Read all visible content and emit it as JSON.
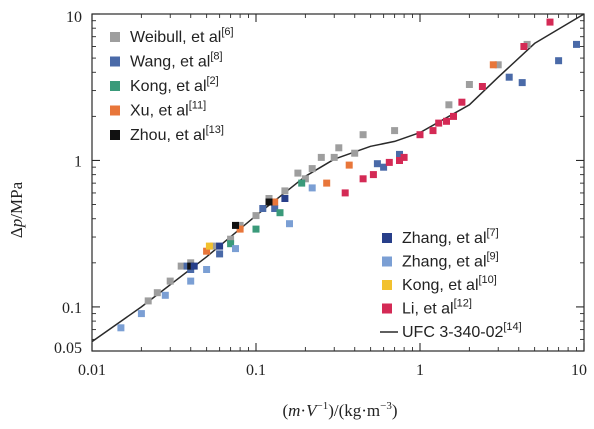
{
  "chart_data": {
    "type": "scatter",
    "x_scale": "log",
    "y_scale": "log",
    "xlim": [
      0.01,
      10
    ],
    "ylim": [
      0.05,
      10
    ],
    "xticks": [
      {
        "value": 0.01,
        "label": "0.01"
      },
      {
        "value": 0.1,
        "label": "0.1"
      },
      {
        "value": 1,
        "label": "1"
      },
      {
        "value": 10,
        "label": "10"
      }
    ],
    "yticks": [
      {
        "value": 0.05,
        "label": "0.05"
      },
      {
        "value": 0.1,
        "label": "0.1"
      },
      {
        "value": 1,
        "label": "1"
      },
      {
        "value": 10,
        "label": "10"
      }
    ],
    "xlabel": {
      "pre": "(",
      "m": "m",
      "dot": "·",
      "v": "V",
      "sup": "−1",
      "post": ")/(kg·m",
      "post_sup": "−3",
      "end": ")"
    },
    "ylabel": {
      "delta": "Δ",
      "p": "p",
      "unit": "/MPa"
    },
    "grid": false,
    "legend_upper": "top-left",
    "legend_lower": "bottom-right",
    "series": [
      {
        "name": "Weibull, et al",
        "ref": "[6]",
        "color": "#9e9e9e",
        "legend_group": "upper",
        "points": [
          [
            0.022,
            0.11
          ],
          [
            0.025,
            0.125
          ],
          [
            0.03,
            0.15
          ],
          [
            0.035,
            0.19
          ],
          [
            0.04,
            0.2
          ],
          [
            0.055,
            0.26
          ],
          [
            0.07,
            0.29
          ],
          [
            0.08,
            0.36
          ],
          [
            0.1,
            0.42
          ],
          [
            0.12,
            0.55
          ],
          [
            0.15,
            0.62
          ],
          [
            0.18,
            0.82
          ],
          [
            0.2,
            0.75
          ],
          [
            0.22,
            0.88
          ],
          [
            0.25,
            1.05
          ],
          [
            0.3,
            1.05
          ],
          [
            0.32,
            1.22
          ],
          [
            0.4,
            1.12
          ],
          [
            0.45,
            1.5
          ],
          [
            0.7,
            1.6
          ],
          [
            1.5,
            2.4
          ],
          [
            2.0,
            3.3
          ],
          [
            3.0,
            4.5
          ],
          [
            4.5,
            6.2
          ]
        ]
      },
      {
        "name": "Wang, et al",
        "ref": "[8]",
        "color": "#4a6aa8",
        "legend_group": "upper",
        "points": [
          [
            0.038,
            0.19
          ],
          [
            0.04,
            0.18
          ],
          [
            0.06,
            0.23
          ],
          [
            0.11,
            0.47
          ],
          [
            0.13,
            0.47
          ],
          [
            0.55,
            0.95
          ],
          [
            0.6,
            0.9
          ],
          [
            0.75,
            1.1
          ],
          [
            3.5,
            3.7
          ],
          [
            4.2,
            3.4
          ],
          [
            7.0,
            4.8
          ],
          [
            9.0,
            6.2
          ]
        ]
      },
      {
        "name": "Kong, et al",
        "ref": "[2]",
        "color": "#3a9a7a",
        "legend_group": "upper",
        "points": [
          [
            0.07,
            0.27
          ],
          [
            0.1,
            0.34
          ],
          [
            0.14,
            0.44
          ],
          [
            0.19,
            0.7
          ]
        ]
      },
      {
        "name": "Xu, et al",
        "ref": "[11]",
        "color": "#e8763a",
        "legend_group": "upper",
        "points": [
          [
            0.05,
            0.24
          ],
          [
            0.08,
            0.34
          ],
          [
            0.13,
            0.52
          ],
          [
            0.27,
            0.7
          ],
          [
            0.37,
            0.93
          ],
          [
            2.8,
            4.5
          ]
        ]
      },
      {
        "name": "Zhou, et al",
        "ref": "[13]",
        "color": "#111111",
        "legend_group": "upper",
        "points": [
          [
            0.04,
            0.19
          ],
          [
            0.075,
            0.36
          ],
          [
            0.12,
            0.52
          ]
        ]
      },
      {
        "name": "Zhang, et al",
        "ref": "[7]",
        "color": "#283f8a",
        "legend_group": "lower",
        "points": [
          [
            0.042,
            0.19
          ],
          [
            0.06,
            0.26
          ],
          [
            0.15,
            0.55
          ]
        ]
      },
      {
        "name": "Zhang, et al",
        "ref": "[9]",
        "color": "#7b9fd4",
        "legend_group": "lower",
        "points": [
          [
            0.015,
            0.072
          ],
          [
            0.02,
            0.09
          ],
          [
            0.028,
            0.12
          ],
          [
            0.04,
            0.15
          ],
          [
            0.05,
            0.18
          ],
          [
            0.075,
            0.25
          ],
          [
            0.16,
            0.37
          ],
          [
            0.22,
            0.65
          ]
        ]
      },
      {
        "name": "Kong, et al",
        "ref": "[10]",
        "color": "#f2c12e",
        "legend_group": "lower",
        "points": [
          [
            0.052,
            0.26
          ]
        ]
      },
      {
        "name": "Li, et al",
        "ref": "[12]",
        "color": "#d42a55",
        "legend_group": "lower",
        "points": [
          [
            0.35,
            0.6
          ],
          [
            0.45,
            0.75
          ],
          [
            0.52,
            0.8
          ],
          [
            0.65,
            0.97
          ],
          [
            0.75,
            1.0
          ],
          [
            0.8,
            1.05
          ],
          [
            1.0,
            1.5
          ],
          [
            1.2,
            1.6
          ],
          [
            1.3,
            1.8
          ],
          [
            1.45,
            1.85
          ],
          [
            1.6,
            2.0
          ],
          [
            1.8,
            2.5
          ],
          [
            2.4,
            3.2
          ],
          [
            4.3,
            6.0
          ],
          [
            6.2,
            8.8
          ]
        ]
      }
    ],
    "reference_line": {
      "name": "UFC 3-340-02",
      "ref": "[14]",
      "color": "#2a2a2a",
      "points": [
        [
          0.01,
          0.058
        ],
        [
          0.02,
          0.1
        ],
        [
          0.05,
          0.22
        ],
        [
          0.1,
          0.42
        ],
        [
          0.2,
          0.78
        ],
        [
          0.3,
          1.02
        ],
        [
          0.5,
          1.25
        ],
        [
          0.7,
          1.35
        ],
        [
          1.0,
          1.55
        ],
        [
          2.0,
          2.4
        ],
        [
          3.0,
          3.7
        ],
        [
          5.0,
          6.3
        ],
        [
          10,
          10
        ]
      ]
    }
  }
}
